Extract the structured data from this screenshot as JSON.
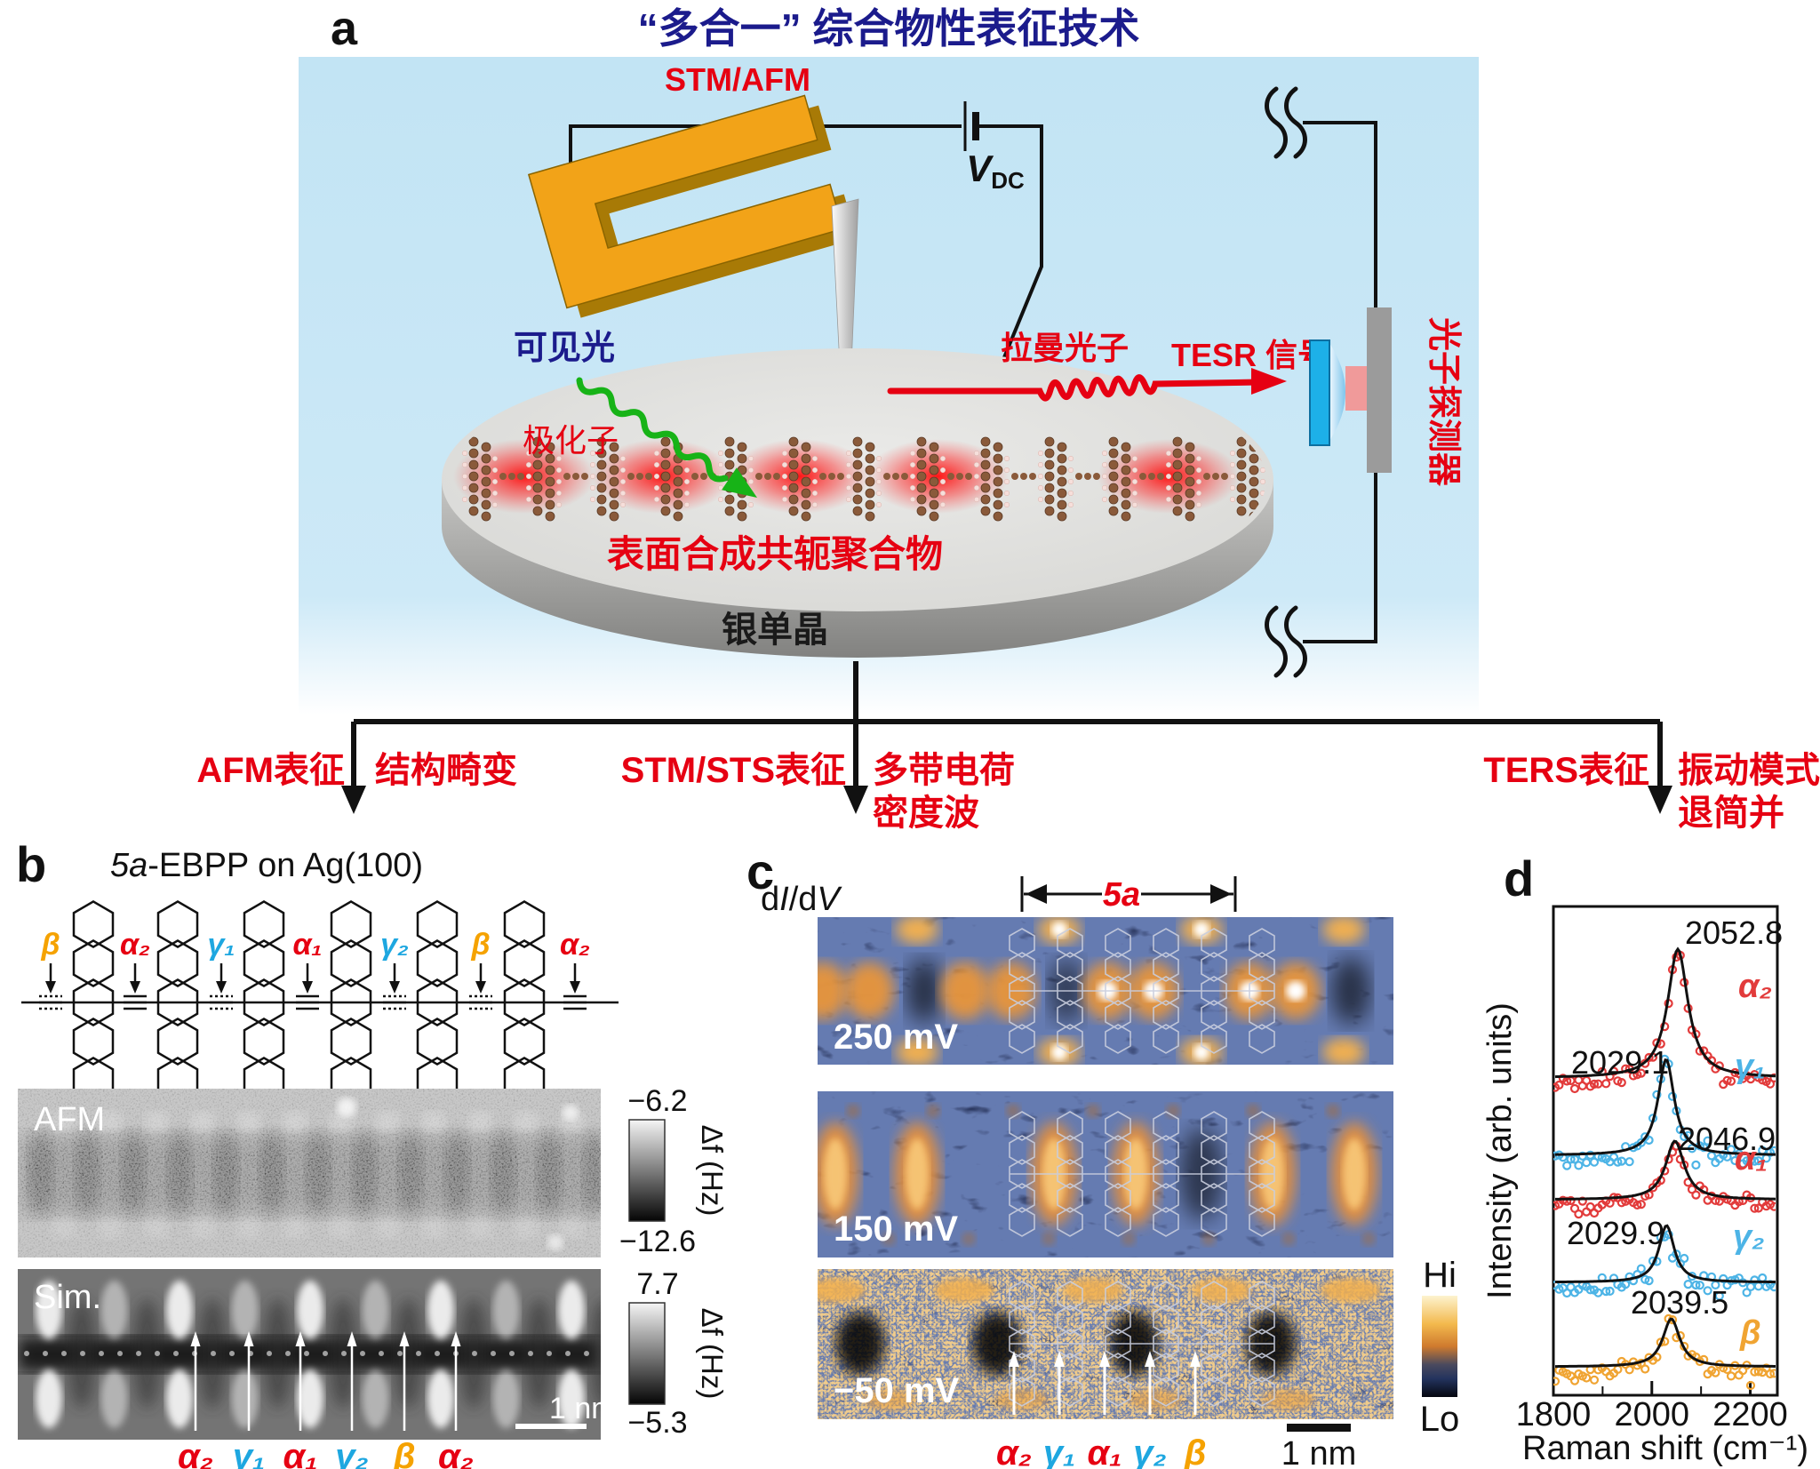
{
  "panel_a": {
    "label": "a",
    "title": "“多合一” 综合物性表征技术",
    "stm_afm_label": "STM/AFM",
    "bias_label": "V",
    "bias_sub": "DC",
    "visible_light": "可见光",
    "polaron": "极化子",
    "raman_photon": "拉曼光子",
    "tesr_signal": "TESR 信号",
    "photon_detector": "光子探测器",
    "polymer_label": "表面合成共轭聚合物",
    "substrate_label": "银单晶",
    "colors": {
      "red": "#e60012",
      "navy": "#1b1b8c",
      "green": "#17b317",
      "bg_blue": "#c2e4f4",
      "fork_orange": "#f2a318"
    }
  },
  "branches": [
    {
      "technique": "AFM表征",
      "lines": [
        "结构畸变"
      ]
    },
    {
      "technique": "STM/STS表征",
      "lines": [
        "多带电荷",
        "密度波"
      ]
    },
    {
      "technique": "TERS表征",
      "lines": [
        "振动模式",
        "退简并"
      ]
    }
  ],
  "panel_b": {
    "label": "b",
    "title_prefix": "5a",
    "title_suffix": "-EBPP on Ag(100)",
    "bond_sites": [
      {
        "name": "β",
        "color": "#f5a200"
      },
      {
        "name": "α₂",
        "color": "#e60012"
      },
      {
        "name": "γ₁",
        "color": "#1ea7e0"
      },
      {
        "name": "α₁",
        "color": "#e60012"
      },
      {
        "name": "γ₂",
        "color": "#1ea7e0"
      },
      {
        "name": "β",
        "color": "#f5a200"
      },
      {
        "name": "α₂",
        "color": "#e60012"
      }
    ],
    "unit_cell_label": "5a",
    "afm": {
      "title": "AFM",
      "scale_max": "−6.2",
      "scale_min": "−12.6",
      "scale_unit": "Δf (Hz)"
    },
    "sim": {
      "title": "Sim.",
      "scale_max": "7.7",
      "scale_min": "−5.3",
      "scale_unit": "Δf (Hz)",
      "scalebar": "1 nm",
      "site_labels": [
        {
          "name": "α₂",
          "color": "#e60012"
        },
        {
          "name": "γ₁",
          "color": "#1ea7e0"
        },
        {
          "name": "α₁",
          "color": "#e60012"
        },
        {
          "name": "γ₂",
          "color": "#1ea7e0"
        },
        {
          "name": "β",
          "color": "#f5a200"
        },
        {
          "name": "α₂",
          "color": "#e60012"
        }
      ]
    }
  },
  "panel_c": {
    "label": "c",
    "didv": {
      "d1": "d",
      "i": "I",
      "d2": "/d",
      "v": "V"
    },
    "unit_cell_label": "5a",
    "maps": [
      {
        "bias": "250 mV"
      },
      {
        "bias": "150 mV"
      },
      {
        "bias": "−50 mV"
      }
    ],
    "colorbar_hi": "Hi",
    "colorbar_lo": "Lo",
    "scalebar": "1 nm",
    "site_labels": [
      {
        "name": "α₂",
        "color": "#e60012"
      },
      {
        "name": "γ₁",
        "color": "#1ea7e0"
      },
      {
        "name": "α₁",
        "color": "#e60012"
      },
      {
        "name": "γ₂",
        "color": "#1ea7e0"
      },
      {
        "name": "β",
        "color": "#f5a200"
      }
    ]
  },
  "panel_d": {
    "label": "d"
  },
  "chart_data": {
    "type": "line",
    "title": "",
    "xlabel": "Raman shift (cm⁻¹)",
    "ylabel": "Intensity (arb. units)",
    "xlim": [
      1800,
      2255
    ],
    "xticks": [
      1800,
      2000,
      2200
    ],
    "xticks_minor": [
      1900,
      2100
    ],
    "grid": false,
    "fit_color": "#111111",
    "legend_position": "inline-right",
    "series": [
      {
        "name": "α₂",
        "color": "#e23b3b",
        "peak_center": 2052.8,
        "peak_label": "2052.8",
        "fwhm": 50,
        "amplitude": 145,
        "label_side": "right"
      },
      {
        "name": "γ₁",
        "color": "#4db4e6",
        "peak_center": 2029.1,
        "peak_label": "2029.1",
        "fwhm": 40,
        "amplitude": 108,
        "label_side": "left"
      },
      {
        "name": "α₁",
        "color": "#e23b3b",
        "peak_center": 2046.9,
        "peak_label": "2046.9",
        "fwhm": 46,
        "amplitude": 66,
        "label_side": "right"
      },
      {
        "name": "γ₂",
        "color": "#4db4e6",
        "peak_center": 2029.9,
        "peak_label": "2029.9",
        "fwhm": 38,
        "amplitude": 64,
        "label_side": "left"
      },
      {
        "name": "β",
        "color": "#f0a432",
        "peak_center": 2039.5,
        "peak_label": "2039.5",
        "fwhm": 42,
        "amplitude": 54,
        "label_side": "left"
      }
    ]
  }
}
